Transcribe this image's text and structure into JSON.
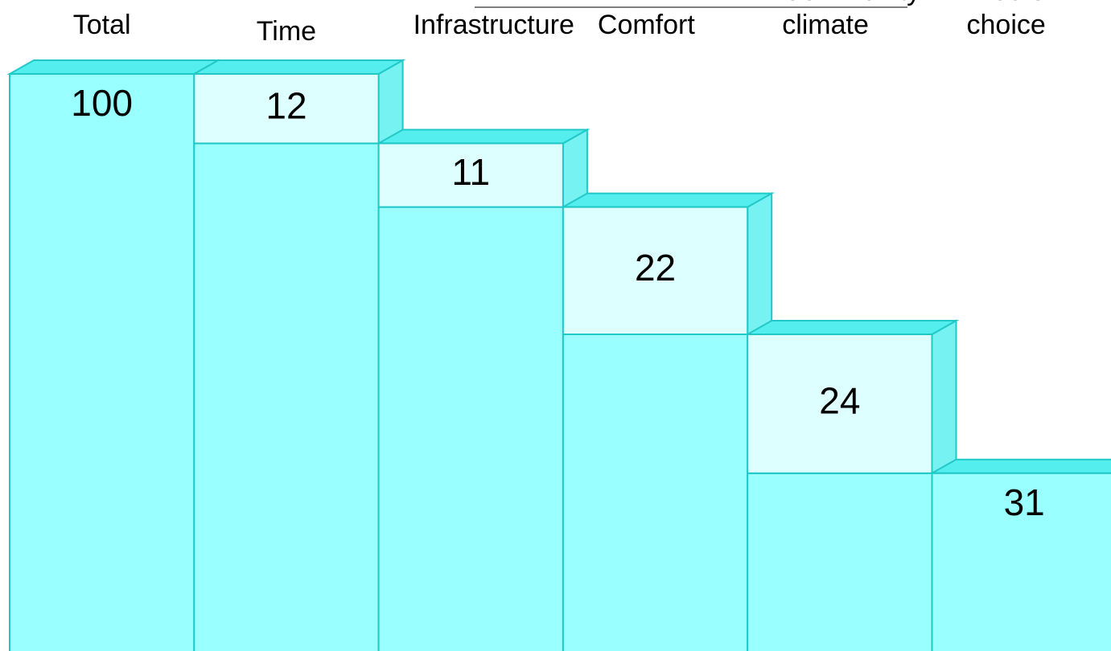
{
  "chart_data": {
    "type": "waterfall",
    "categories": [
      [
        "Total"
      ],
      [
        "Time"
      ],
      [
        "Infrastructure"
      ],
      [
        "Comfort"
      ],
      [
        "Community",
        "climate"
      ],
      [
        "Free of",
        "choice"
      ]
    ],
    "values": [
      100,
      12,
      11,
      22,
      24,
      31
    ],
    "color": "#99ffff",
    "change_color": "#ddffff",
    "top_color": "#55eeee",
    "side_color": "#77f2f2",
    "edge_color": "#22c8c8"
  }
}
